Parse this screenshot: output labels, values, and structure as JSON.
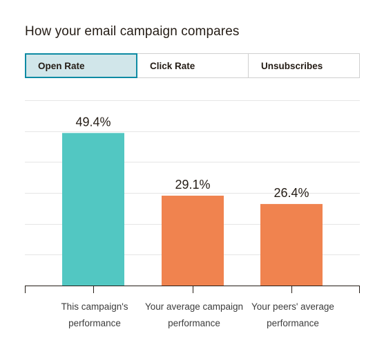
{
  "title": "How your email campaign compares",
  "tabs": [
    {
      "label": "Open Rate",
      "active": true
    },
    {
      "label": "Click Rate",
      "active": false
    },
    {
      "label": "Unsubscribes",
      "active": false
    }
  ],
  "colors": {
    "campaign": "#52c7c2",
    "comparison": "#f0834f",
    "gridline": "#e5e5e5",
    "axis": "#241c15",
    "active_tab_bg": "#d1e6ea",
    "active_tab_border": "#0d8aa3"
  },
  "chart_data": {
    "type": "bar",
    "categories": [
      [
        "This campaign's",
        "performance"
      ],
      [
        "Your average campaign",
        "performance"
      ],
      [
        "Your peers' average",
        "performance"
      ]
    ],
    "values": [
      49.4,
      29.1,
      26.4
    ],
    "data_labels": [
      "49.4%",
      "29.1%",
      "26.4%"
    ],
    "bar_colors": [
      "#52c7c2",
      "#f0834f",
      "#f0834f"
    ],
    "ylim": [
      0,
      60
    ],
    "y_gridline_step": 10,
    "grid": true,
    "legend": "none"
  }
}
